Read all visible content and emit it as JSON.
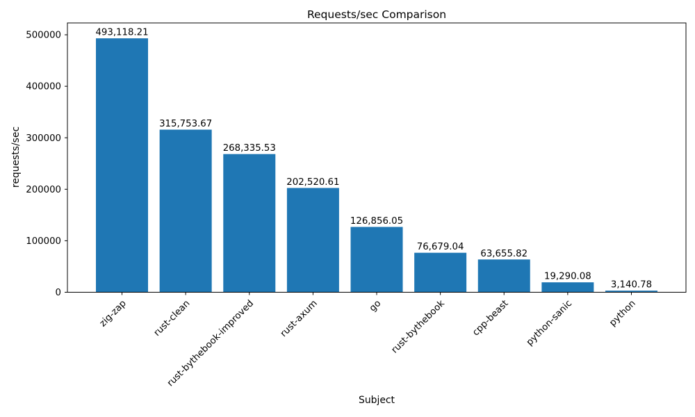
{
  "figure": {
    "background": "#ffffff"
  },
  "colors": {
    "bar": "#1f77b4",
    "text": "#000000",
    "spine": "#000000",
    "background": "#ffffff"
  },
  "chart_data": {
    "type": "bar",
    "title": "Requests/sec Comparison",
    "xlabel": "Subject",
    "ylabel": "requests/sec",
    "categories": [
      "zig-zap",
      "rust-clean",
      "rust-bythebook-improved",
      "rust-axum",
      "go",
      "rust-bythebook",
      "cpp-beast",
      "python-sanic",
      "python"
    ],
    "values": [
      493118.21,
      315753.67,
      268335.53,
      202520.61,
      126856.05,
      76679.04,
      63655.82,
      19290.08,
      3140.78
    ],
    "value_labels": [
      "493,118.21",
      "315,753.67",
      "268,335.53",
      "202,520.61",
      "126,856.05",
      "76,679.04",
      "63,655.82",
      "19,290.08",
      "3,140.78"
    ],
    "yticks": [
      0,
      100000,
      200000,
      300000,
      400000,
      500000
    ],
    "ytick_labels": [
      "0",
      "100000",
      "200000",
      "300000",
      "400000",
      "500000"
    ],
    "ylim": [
      0,
      523000
    ],
    "bar_color": "#1f77b4",
    "grid": false,
    "legend": "none",
    "x_tick_label_rotation_deg": 45
  }
}
